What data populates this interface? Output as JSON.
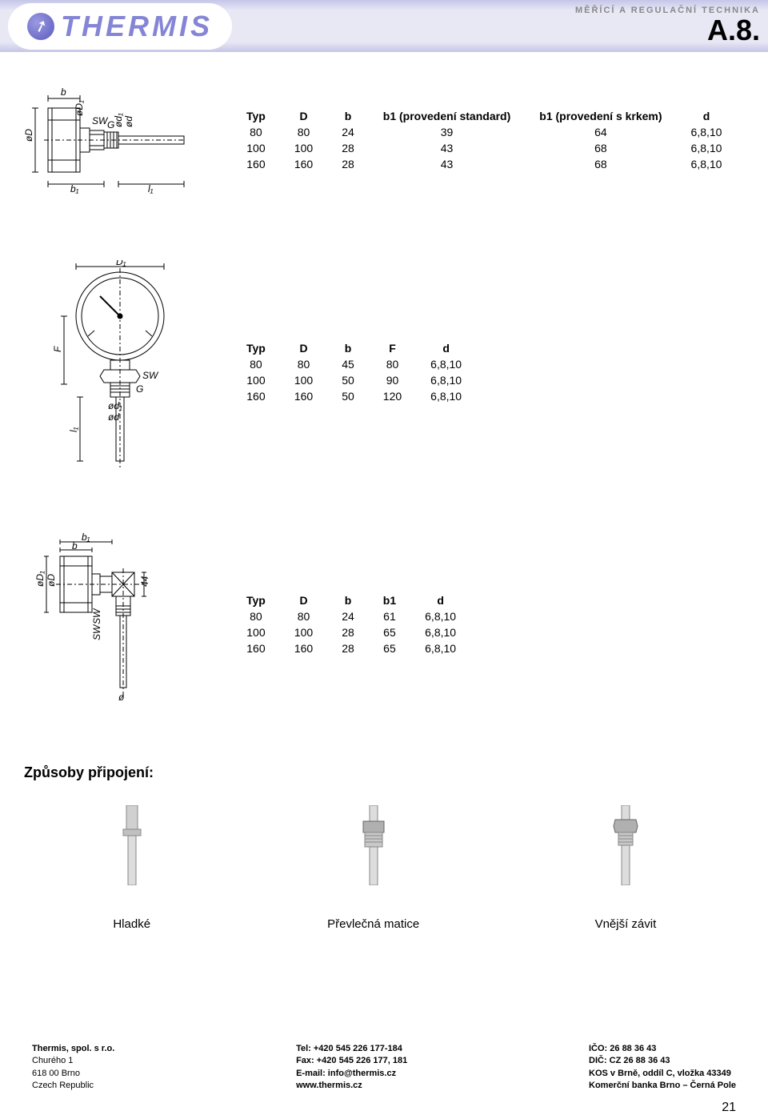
{
  "header": {
    "brand": "THERMIS",
    "tagline": "MĚŘÍCÍ A REGULAČNÍ TECHNIKA",
    "code": "A.8."
  },
  "table1": {
    "headers": [
      "Typ",
      "D",
      "b",
      "b1 (provedení standard)",
      "b1 (provedení s krkem)",
      "d"
    ],
    "rows": [
      [
        "80",
        "80",
        "24",
        "39",
        "64",
        "6,8,10"
      ],
      [
        "100",
        "100",
        "28",
        "43",
        "68",
        "6,8,10"
      ],
      [
        "160",
        "160",
        "28",
        "43",
        "68",
        "6,8,10"
      ]
    ]
  },
  "table2": {
    "headers": [
      "Typ",
      "D",
      "b",
      "F",
      "d"
    ],
    "rows": [
      [
        "80",
        "80",
        "45",
        "80",
        "6,8,10"
      ],
      [
        "100",
        "100",
        "50",
        "90",
        "6,8,10"
      ],
      [
        "160",
        "160",
        "50",
        "120",
        "6,8,10"
      ]
    ]
  },
  "table3": {
    "headers": [
      "Typ",
      "D",
      "b",
      "b1",
      "d"
    ],
    "rows": [
      [
        "80",
        "80",
        "24",
        "61",
        "6,8,10"
      ],
      [
        "100",
        "100",
        "28",
        "65",
        "6,8,10"
      ],
      [
        "160",
        "160",
        "28",
        "65",
        "6,8,10"
      ]
    ]
  },
  "connections": {
    "heading": "Způsoby připojení:",
    "items": [
      "Hladké",
      "Převlečná matice",
      "Vnější závit"
    ]
  },
  "footer": {
    "col1": [
      "Thermis, spol. s r.o.",
      "Churého 1",
      "618 00   Brno",
      "Czech Republic"
    ],
    "col2": [
      "Tel: +420 545 226 177-184",
      "Fax: +420 545 226 177, 181",
      "E-mail: info@thermis.cz",
      "www.thermis.cz"
    ],
    "col3": [
      "IČO: 26 88 36 43",
      "DIČ: CZ 26 88 36 43",
      "KOS v Brně, oddíl C, vložka 43349",
      "Komerční banka Brno – Černá Pole"
    ]
  },
  "pageNumber": "21",
  "colors": {
    "accent": "#8585d6",
    "diagram_stroke": "#000000"
  },
  "dimlabels": {
    "d1_b": "b",
    "d1_sw": "SW",
    "d1_oD": "øD",
    "d1_oD1": "øD₁",
    "d1_G": "G",
    "d1_od1": "ød₁",
    "d1_od": "ød",
    "d1_b1": "b₁",
    "d1_l1": "l₁",
    "d2_D1": "D₁",
    "d2_F": "F",
    "d2_SW": "SW",
    "d2_l1": "l₁",
    "d2_G": "G",
    "d2_od1": "ød₁",
    "d2_od": "ød",
    "d3_b1": "b₁",
    "d3_b": "b",
    "d3_oD1": "øD₁",
    "d3_oD": "øD",
    "d3_44": "44",
    "d3_SW": "SW",
    "d3_SW2": "SW",
    "d3_o": "ø"
  }
}
